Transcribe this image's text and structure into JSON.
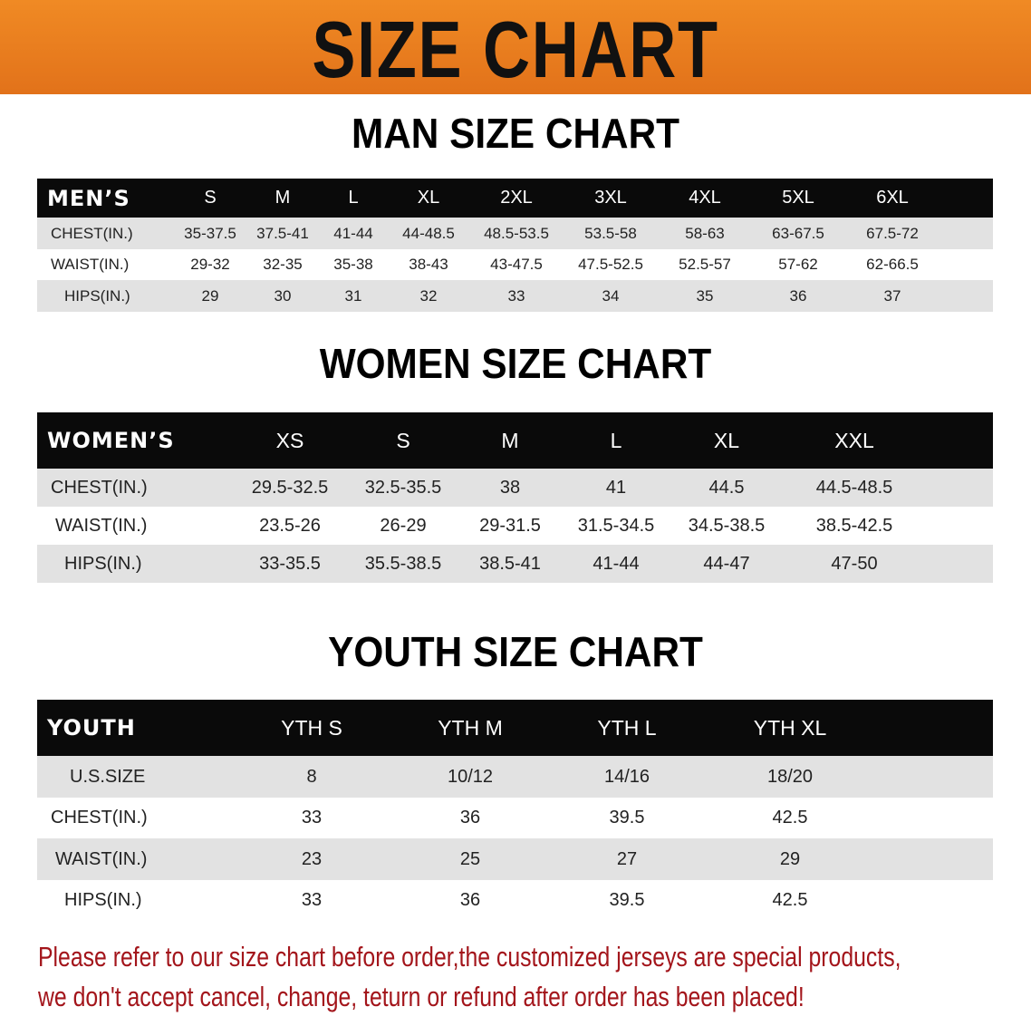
{
  "banner_title": "SIZE CHART",
  "colors": {
    "banner": "#e8781a",
    "header": "#0a0a0a",
    "note": "#a3151b"
  },
  "tables": [
    {
      "title": "MAN SIZE CHART",
      "header": [
        "MEN’S",
        "S",
        "M",
        "L",
        "XL",
        "2XL",
        "3XL",
        "4XL",
        "5XL",
        "6XL"
      ],
      "rows": [
        [
          "CHEST(IN.)",
          "35-37.5",
          "37.5-41",
          "41-44",
          "44-48.5",
          "48.5-53.5",
          "53.5-58",
          "58-63",
          "63-67.5",
          "67.5-72"
        ],
        [
          "WAIST(IN.)",
          "29-32",
          "32-35",
          "35-38",
          "38-43",
          "43-47.5",
          "47.5-52.5",
          "52.5-57",
          "57-62",
          "62-66.5"
        ],
        [
          "HIPS(IN.)",
          "29",
          "30",
          "31",
          "32",
          "33",
          "34",
          "35",
          "36",
          "37"
        ]
      ]
    },
    {
      "title": "WOMEN SIZE CHART",
      "header": [
        "WOMEN’S",
        "XS",
        "S",
        "M",
        "L",
        "XL",
        "XXL"
      ],
      "rows": [
        [
          "CHEST(IN.)",
          "29.5-32.5",
          "32.5-35.5",
          "38",
          "41",
          "44.5",
          "44.5-48.5"
        ],
        [
          "WAIST(IN.)",
          "23.5-26",
          "26-29",
          "29-31.5",
          "31.5-34.5",
          "34.5-38.5",
          "38.5-42.5"
        ],
        [
          "HIPS(IN.)",
          "33-35.5",
          "35.5-38.5",
          "38.5-41",
          "41-44",
          "44-47",
          "47-50"
        ]
      ]
    },
    {
      "title": "YOUTH SIZE CHART",
      "header": [
        "YOUTH",
        "YTH S",
        "YTH M",
        "YTH L",
        "YTH XL"
      ],
      "rows": [
        [
          "U.S.SIZE",
          "8",
          "10/12",
          "14/16",
          "18/20"
        ],
        [
          "CHEST(IN.)",
          "33",
          "36",
          "39.5",
          "42.5"
        ],
        [
          "WAIST(IN.)",
          "23",
          "25",
          "27",
          "29"
        ],
        [
          "HIPS(IN.)",
          "33",
          "36",
          "39.5",
          "42.5"
        ]
      ]
    }
  ],
  "note_lines": [
    "Please refer to our size chart before order,the customized jerseys are special products,",
    "we don't accept cancel, change, teturn or refund after order has been placed!"
  ]
}
